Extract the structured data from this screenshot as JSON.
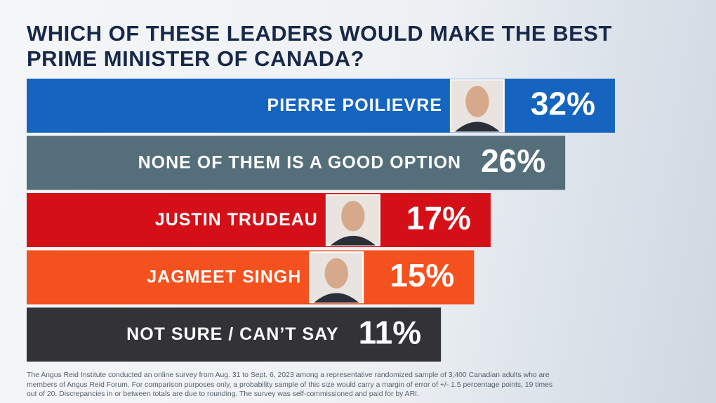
{
  "chart_data": {
    "type": "bar",
    "orientation": "horizontal",
    "title": "WHICH OF THESE LEADERS WOULD MAKE THE BEST PRIME MINISTER OF CANADA?",
    "categories": [
      "PIERRE POILIEVRE",
      "NONE OF THEM IS A GOOD OPTION",
      "JUSTIN TRUDEAU",
      "JAGMEET SINGH",
      "NOT SURE / CAN’T SAY"
    ],
    "values": [
      32,
      26,
      17,
      15,
      11
    ],
    "value_labels": [
      "32%",
      "26%",
      "17%",
      "15%",
      "11%"
    ],
    "colors": [
      "#1565c0",
      "#546e7a",
      "#d50f17",
      "#f4511e",
      "#333337"
    ],
    "xlim": [
      -39,
      32
    ],
    "note": "The Angus Reid Institute conducted an online survey from Aug. 31 to Sept. 6, 2023 among a representative randomized sample of 3,400 Canadian adults who are members of Angus Reid Forum. For comparison purposes only, a probability sample of this size would carry a margin of error of +/- 1.5 percentage points, 19 times out of 20. Discrepancies in or between totals are due to rounding. The survey was self-commissioned and paid for by ARI."
  }
}
